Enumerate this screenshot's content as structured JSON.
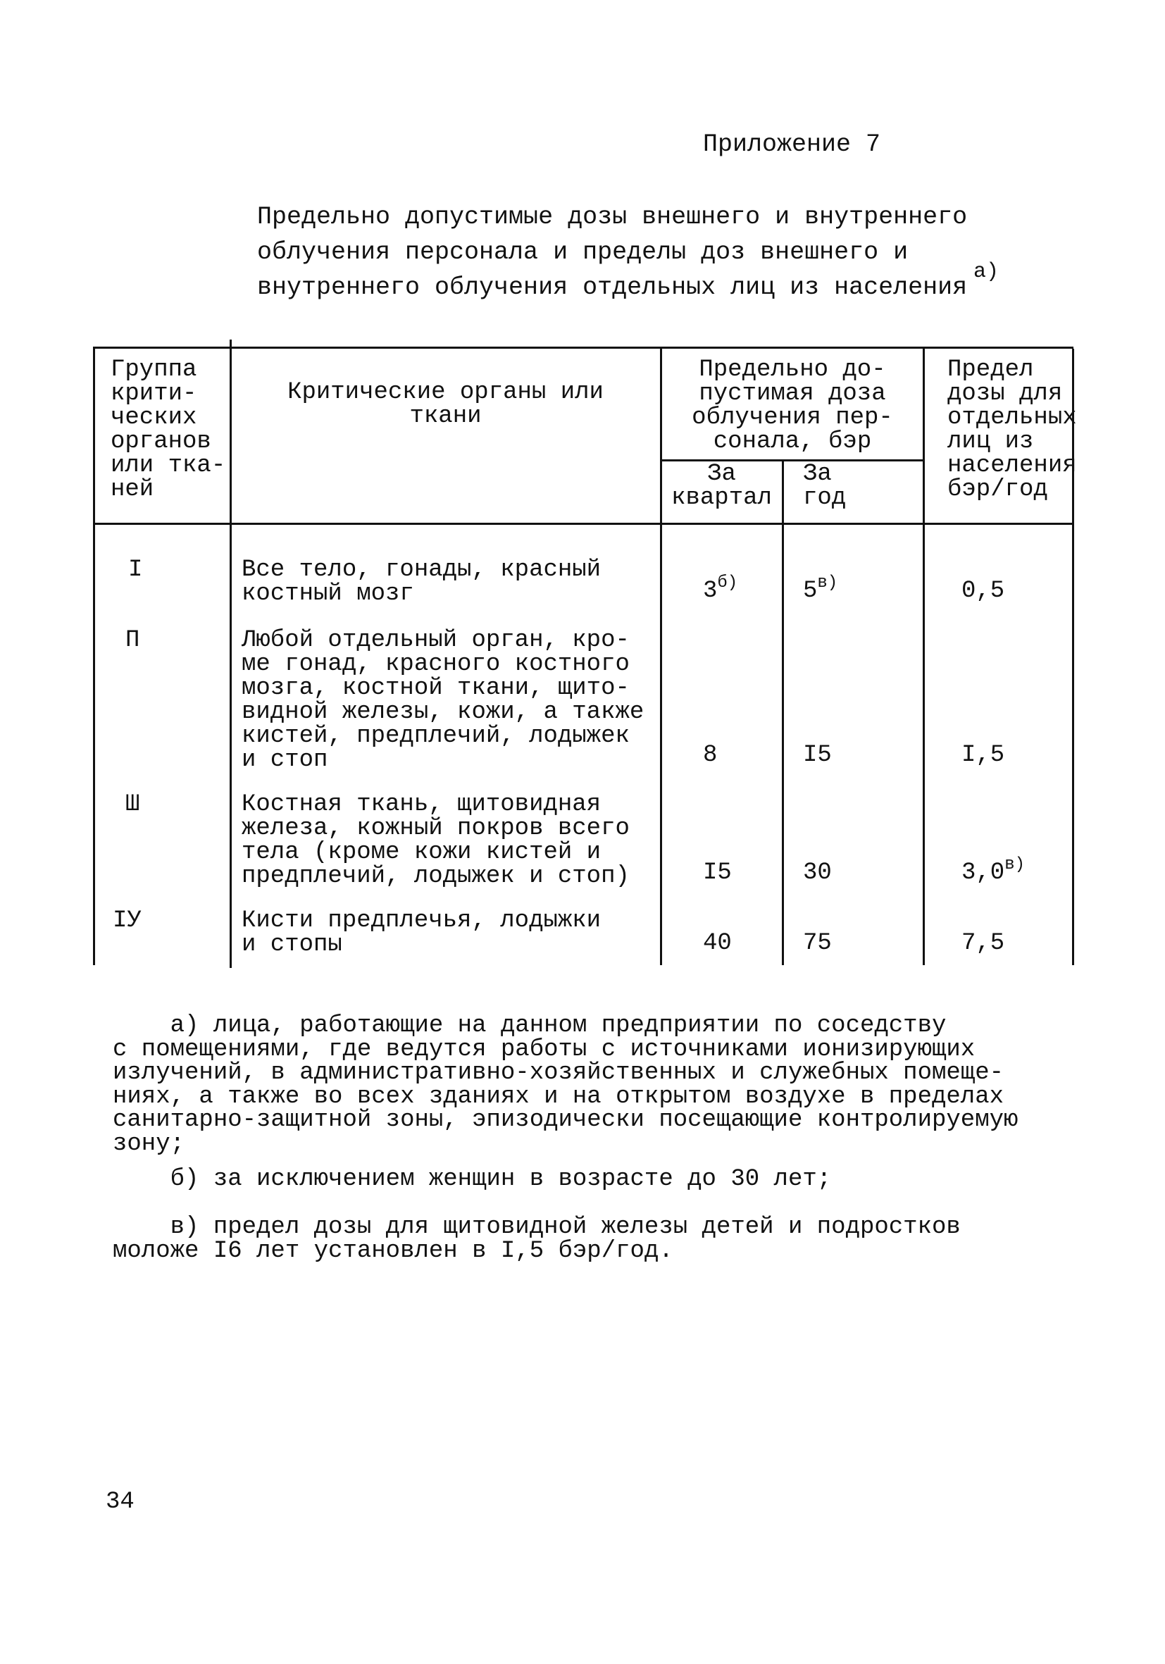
{
  "appendix_label": "Приложение 7",
  "title": {
    "lines": [
      "Предельно допустимые дозы внешнего и внутреннего",
      "облучения персонала и пределы доз внешнего и",
      "внутреннего облучения отдельных лиц из населения"
    ],
    "footnote_mark": "а)"
  },
  "table": {
    "headers": {
      "group": "Группа\nкрити-\nческих\nорганов\nили тка-\nней",
      "organs": "Критические органы или\nткани",
      "personnel": "Предельно до-\nпустимая доза\nоблучения пер-\nсонала, бэр",
      "quarter": "За\nквартал",
      "year": "За\nгод",
      "public": "Предел\nдозы для\nотдельных\nлиц из\nнаселения\nбэр/год"
    },
    "rows": [
      {
        "group": "I",
        "organs": "Все тело, гонады, красный\nкостный мозг",
        "quarter": {
          "value": "3",
          "sup": "б)"
        },
        "year": {
          "value": "5",
          "sup": "в)"
        },
        "public": {
          "value": "0,5",
          "sup": ""
        }
      },
      {
        "group": "П",
        "organs": "Любой отдельный орган, кро-\nме гонад, красного костного\nмозга, костной ткани, щито-\nвидной железы, кожи, а также\nкистей, предплечий, лодыжек\nи стоп",
        "quarter": {
          "value": "8",
          "sup": ""
        },
        "year": {
          "value": "I5",
          "sup": ""
        },
        "public": {
          "value": "I,5",
          "sup": ""
        }
      },
      {
        "group": "Ш",
        "organs": "Костная ткань, щитовидная\nжелеза, кожный покров всего\nтела (кроме кожи кистей и\nпредплечий, лодыжек и стоп)",
        "quarter": {
          "value": "I5",
          "sup": ""
        },
        "year": {
          "value": "30",
          "sup": ""
        },
        "public": {
          "value": "3,0",
          "sup": "в)"
        }
      },
      {
        "group": "IУ",
        "organs": "Кисти предплечья, лодыжки\nи стопы",
        "quarter": {
          "value": "40",
          "sup": ""
        },
        "year": {
          "value": "75",
          "sup": ""
        },
        "public": {
          "value": "7,5",
          "sup": ""
        }
      }
    ]
  },
  "footnotes": [
    "    а) лица, работающие на данном предприятии по соседству\nс помещениями, где ведутся работы с источниками ионизирующих\nизлучений, в административно-хозяйственных и служебных помеще-\nниях, а также во всех зданиях и на открытом воздухе в пределах\nсанитарно-защитной зоны, эпизодически посещающие контролируемую\nзону;",
    "    б) за исключением женщин в возрасте до 30 лет;",
    "    в) предел дозы для щитовидной железы детей и подростков\nмоложе I6 лет установлен в I,5 бэр/год."
  ],
  "page_number": "34"
}
